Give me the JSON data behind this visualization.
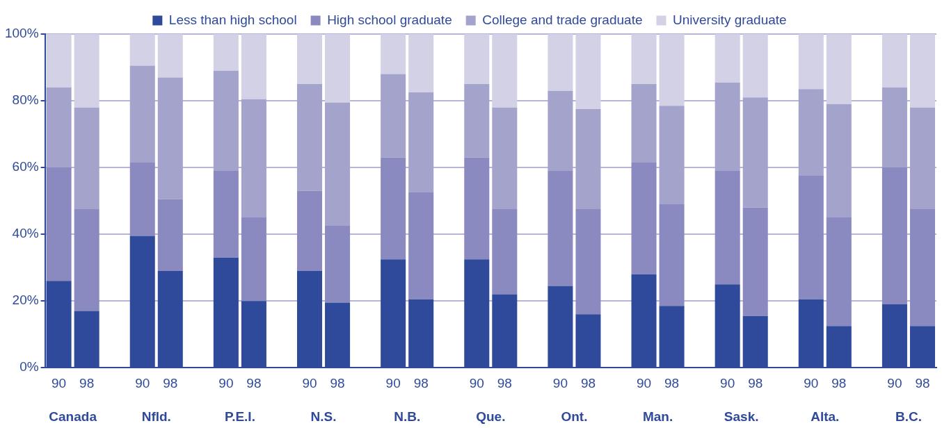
{
  "chart_data": {
    "type": "bar",
    "stacked": true,
    "categories": [
      "90",
      "98",
      null,
      "90",
      "98",
      null,
      "90",
      "98",
      null,
      "90",
      "98",
      null,
      "90",
      "98",
      null,
      "90",
      "98",
      null,
      "90",
      "98",
      null,
      "90",
      "98",
      null,
      "90",
      "98",
      null,
      "90",
      "98",
      null,
      "90",
      "98"
    ],
    "series": [
      {
        "name": "Less than high school",
        "color": "#2f4a9a",
        "values": [
          26,
          17,
          null,
          39.5,
          29,
          null,
          33,
          20,
          null,
          29,
          19.5,
          null,
          32.5,
          20.5,
          null,
          32.5,
          22,
          null,
          24.5,
          16,
          null,
          28,
          18.5,
          null,
          25,
          15.5,
          null,
          20.5,
          12.5,
          null,
          19,
          12.5
        ]
      },
      {
        "name": "High school graduate",
        "color": "#8a8ac0",
        "values": [
          34,
          30.5,
          null,
          22,
          21.5,
          null,
          26,
          25,
          null,
          24,
          23,
          null,
          30.5,
          32,
          null,
          30.5,
          25.5,
          null,
          34.5,
          31.5,
          null,
          33.5,
          30.5,
          null,
          34,
          32.5,
          null,
          37,
          32.5,
          null,
          41,
          35
        ]
      },
      {
        "name": "College and trade graduate",
        "color": "#a3a3cc",
        "values": [
          24,
          30.5,
          null,
          29,
          36.5,
          null,
          30,
          35.5,
          null,
          32,
          37,
          null,
          25,
          30,
          null,
          22,
          30.5,
          null,
          24,
          30,
          null,
          23.5,
          29.5,
          null,
          26.5,
          33,
          null,
          26,
          34,
          null,
          24,
          30.5
        ]
      },
      {
        "name": "University graduate",
        "color": "#d3d1e6",
        "values": [
          16,
          22,
          null,
          9.5,
          13,
          null,
          11,
          19.5,
          null,
          15,
          20.5,
          null,
          12,
          17.5,
          null,
          15,
          22,
          null,
          17,
          22.5,
          null,
          15,
          21.5,
          null,
          14.5,
          19,
          null,
          16.5,
          21,
          null,
          16,
          22
        ]
      }
    ],
    "ylim": [
      0,
      100
    ],
    "yticks": [
      {
        "value": 0,
        "label": "0%"
      },
      {
        "value": 20,
        "label": "20%"
      },
      {
        "value": 40,
        "label": "40%"
      },
      {
        "value": 60,
        "label": "60%"
      },
      {
        "value": 80,
        "label": "80%"
      },
      {
        "value": 100,
        "label": "100%"
      }
    ],
    "grid": "y",
    "legend": "top",
    "annotations": [
      "Canada",
      "Nfld.",
      "P.E.I.",
      "N.S.",
      "N.B.",
      "Que.",
      "Ont.",
      "Man.",
      "Sask.",
      "Alta.",
      "B.C."
    ]
  }
}
